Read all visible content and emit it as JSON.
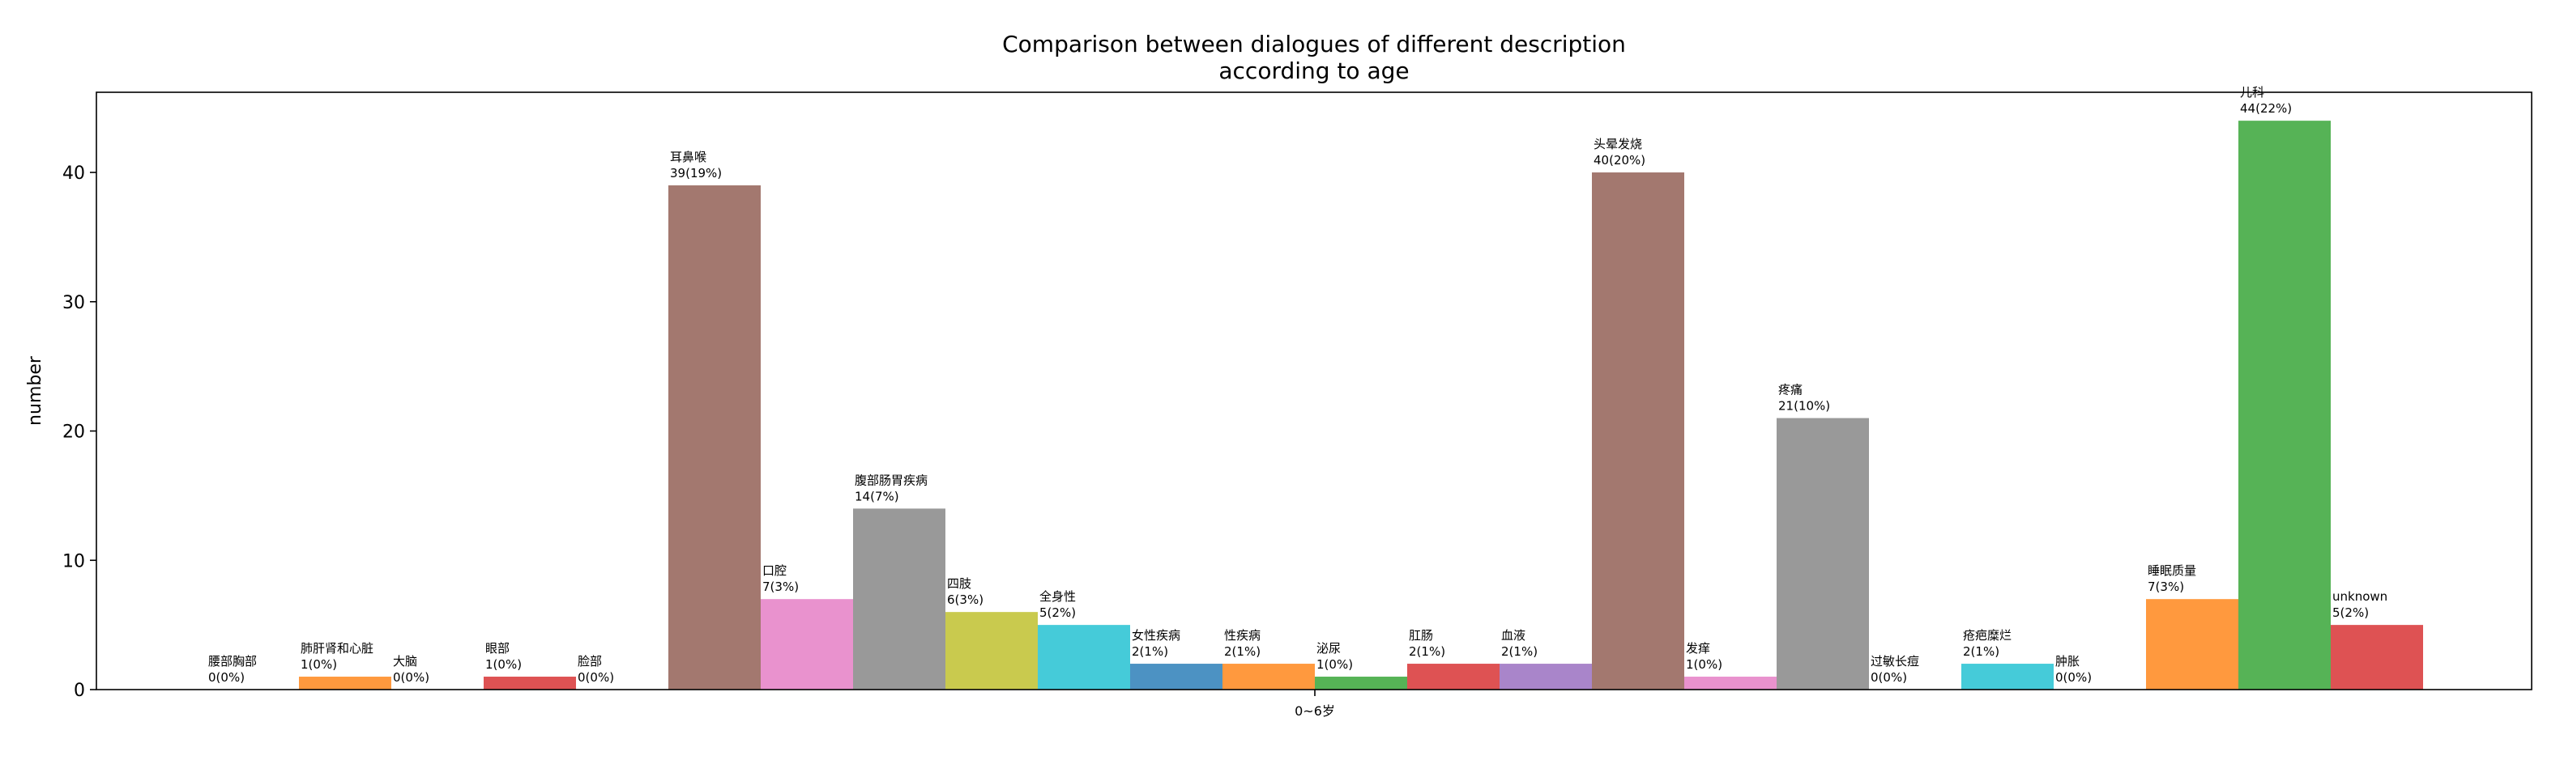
{
  "chart_data": {
    "type": "bar",
    "title": "Comparison between dialogues of different description\naccording to age",
    "xlabel": "",
    "ylabel": "number",
    "ylim": [
      0,
      46.2
    ],
    "yticks": [
      0,
      10,
      20,
      30,
      40
    ],
    "categories": [
      "0~6岁"
    ],
    "grid": false,
    "bars": [
      {
        "name": "腰部胸部",
        "value": 0,
        "label": "0(0%)",
        "color": "#1f77b4"
      },
      {
        "name": "肺肝肾和心脏",
        "value": 1,
        "label": "1(0%)",
        "color": "#ff7f0e"
      },
      {
        "name": "大脑",
        "value": 0,
        "label": "0(0%)",
        "color": "#2ca02c"
      },
      {
        "name": "眼部",
        "value": 1,
        "label": "1(0%)",
        "color": "#d62728"
      },
      {
        "name": "脸部",
        "value": 0,
        "label": "0(0%)",
        "color": "#9467bd"
      },
      {
        "name": "耳鼻喉",
        "value": 39,
        "label": "39(19%)",
        "color": "#8c564b"
      },
      {
        "name": "口腔",
        "value": 7,
        "label": "7(3%)",
        "color": "#e377c2"
      },
      {
        "name": "腹部肠胃疾病",
        "value": 14,
        "label": "14(7%)",
        "color": "#7f7f7f"
      },
      {
        "name": "四肢",
        "value": 6,
        "label": "6(3%)",
        "color": "#bcbd22"
      },
      {
        "name": "全身性",
        "value": 5,
        "label": "5(2%)",
        "color": "#17becf"
      },
      {
        "name": "女性疾病",
        "value": 2,
        "label": "2(1%)",
        "color": "#1f77b4"
      },
      {
        "name": "性疾病",
        "value": 2,
        "label": "2(1%)",
        "color": "#ff7f0e"
      },
      {
        "name": "泌尿",
        "value": 1,
        "label": "1(0%)",
        "color": "#2ca02c"
      },
      {
        "name": "肛肠",
        "value": 2,
        "label": "2(1%)",
        "color": "#d62728"
      },
      {
        "name": "血液",
        "value": 2,
        "label": "2(1%)",
        "color": "#9467bd"
      },
      {
        "name": "头晕发烧",
        "value": 40,
        "label": "40(20%)",
        "color": "#8c564b"
      },
      {
        "name": "发痒",
        "value": 1,
        "label": "1(0%)",
        "color": "#e377c2"
      },
      {
        "name": "疼痛",
        "value": 21,
        "label": "21(10%)",
        "color": "#7f7f7f"
      },
      {
        "name": "过敏长痘",
        "value": 0,
        "label": "0(0%)",
        "color": "#bcbd22"
      },
      {
        "name": "疮疤糜烂",
        "value": 2,
        "label": "2(1%)",
        "color": "#17becf"
      },
      {
        "name": "肿胀",
        "value": 0,
        "label": "0(0%)",
        "color": "#1f77b4"
      },
      {
        "name": "睡眠质量",
        "value": 7,
        "label": "7(3%)",
        "color": "#ff7f0e"
      },
      {
        "name": "儿科",
        "value": 44,
        "label": "44(22%)",
        "color": "#2ca02c"
      },
      {
        "name": "unknown",
        "value": 5,
        "label": "5(2%)",
        "color": "#d62728"
      }
    ]
  }
}
